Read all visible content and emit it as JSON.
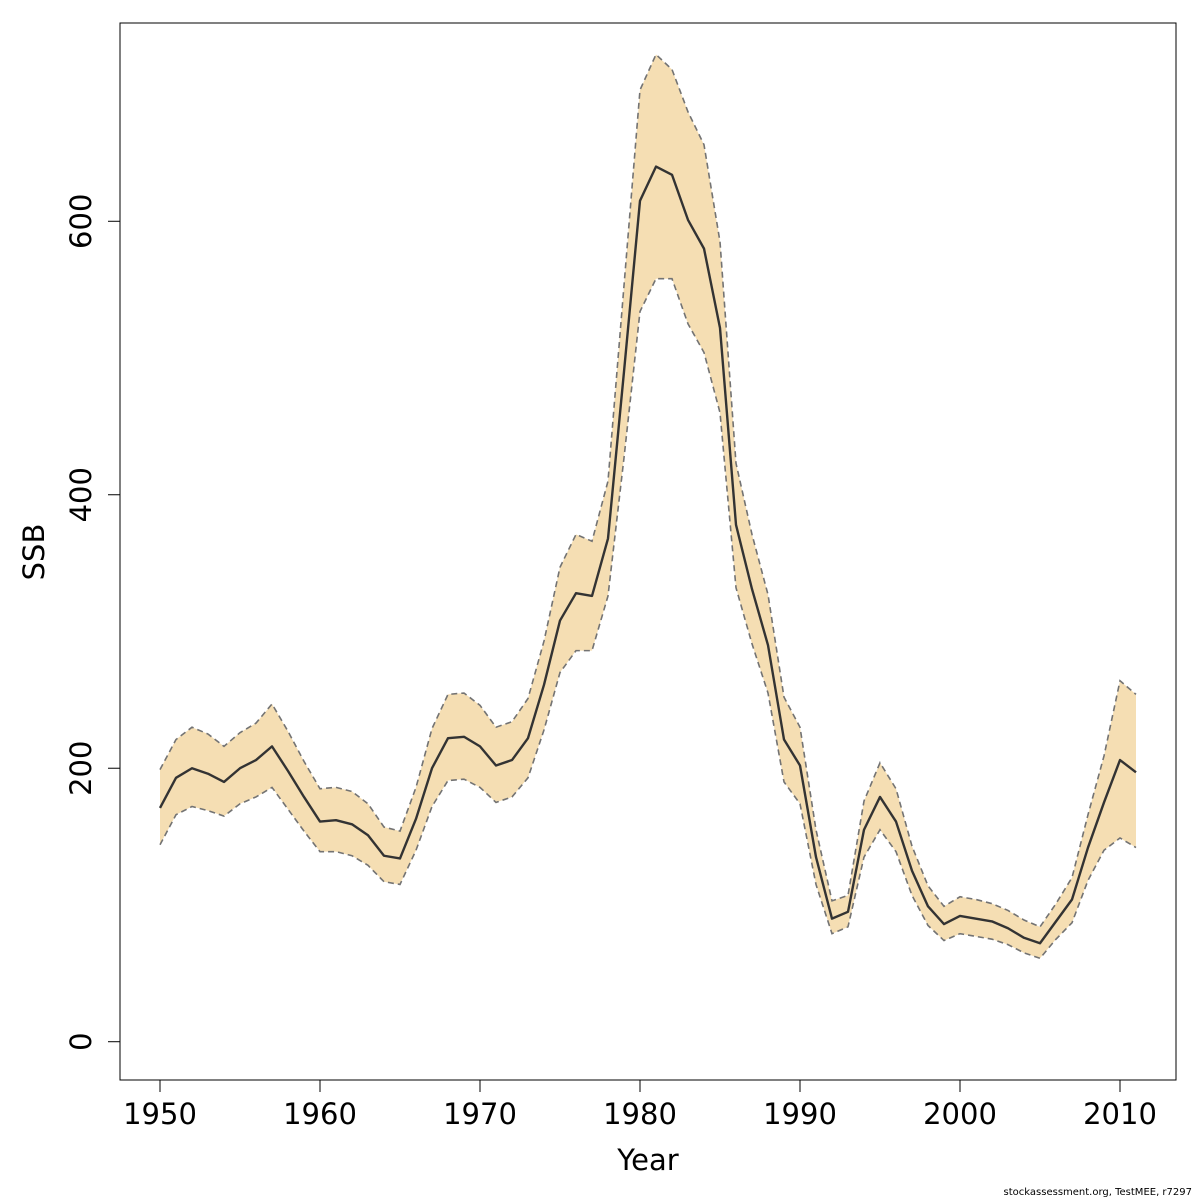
{
  "colors": {
    "band_fill": "#f5deb3",
    "band_border": "#737373",
    "line": "#333333",
    "axis": "#000000"
  },
  "chart_data": {
    "type": "line",
    "title": "",
    "xlabel": "Year",
    "ylabel": "SSB",
    "xlim": [
      1947.5,
      2013.5
    ],
    "ylim": [
      -28,
      745
    ],
    "xticks": [
      1950,
      1960,
      1970,
      1980,
      1990,
      2000,
      2010
    ],
    "yticks": [
      0,
      200,
      400,
      600
    ],
    "grid": false,
    "legend": "none",
    "x": [
      1950,
      1951,
      1952,
      1953,
      1954,
      1955,
      1956,
      1957,
      1958,
      1959,
      1960,
      1961,
      1962,
      1963,
      1964,
      1965,
      1966,
      1967,
      1968,
      1969,
      1970,
      1971,
      1972,
      1973,
      1974,
      1975,
      1976,
      1977,
      1978,
      1979,
      1980,
      1981,
      1982,
      1983,
      1984,
      1985,
      1986,
      1987,
      1988,
      1989,
      1990,
      1991,
      1992,
      1993,
      1994,
      1995,
      1996,
      1997,
      1998,
      1999,
      2000,
      2001,
      2002,
      2003,
      2004,
      2005,
      2006,
      2007,
      2008,
      2009,
      2010,
      2011
    ],
    "series": [
      {
        "role": "estimate",
        "values": [
          171,
          193,
          200,
          196,
          190,
          200,
          206,
          216,
          198,
          179,
          161,
          162,
          159,
          151,
          136,
          134,
          163,
          200,
          222,
          223,
          216,
          202,
          206,
          222,
          261,
          308,
          328,
          326,
          368,
          490,
          615,
          640,
          634,
          601,
          580,
          522,
          378,
          331,
          290,
          221,
          202,
          135,
          90,
          95,
          155,
          179,
          161,
          125,
          99,
          86,
          92,
          90,
          88,
          83,
          76,
          72,
          88,
          104,
          142,
          175,
          206,
          197
        ]
      },
      {
        "role": "upper",
        "values": [
          199,
          221,
          230,
          225,
          216,
          226,
          233,
          247,
          227,
          205,
          185,
          186,
          183,
          174,
          157,
          154,
          186,
          229,
          254,
          255,
          246,
          230,
          234,
          251,
          293,
          347,
          371,
          366,
          410,
          553,
          696,
          722,
          711,
          680,
          656,
          585,
          423,
          371,
          327,
          252,
          230,
          155,
          103,
          107,
          176,
          204,
          185,
          143,
          114,
          99,
          106,
          104,
          101,
          96,
          89,
          84,
          101,
          120,
          166,
          209,
          264,
          254
        ]
      },
      {
        "role": "lower",
        "values": [
          144,
          166,
          172,
          169,
          165,
          174,
          179,
          186,
          170,
          154,
          139,
          139,
          136,
          129,
          117,
          115,
          140,
          172,
          191,
          192,
          186,
          175,
          179,
          193,
          228,
          270,
          286,
          286,
          326,
          427,
          534,
          558,
          558,
          525,
          504,
          460,
          332,
          291,
          255,
          190,
          174,
          115,
          79,
          84,
          135,
          155,
          139,
          107,
          85,
          74,
          79,
          77,
          75,
          71,
          65,
          61,
          75,
          87,
          118,
          140,
          149,
          142
        ]
      }
    ]
  },
  "footnote": "stockassessment.org, TestMEE, r7297"
}
